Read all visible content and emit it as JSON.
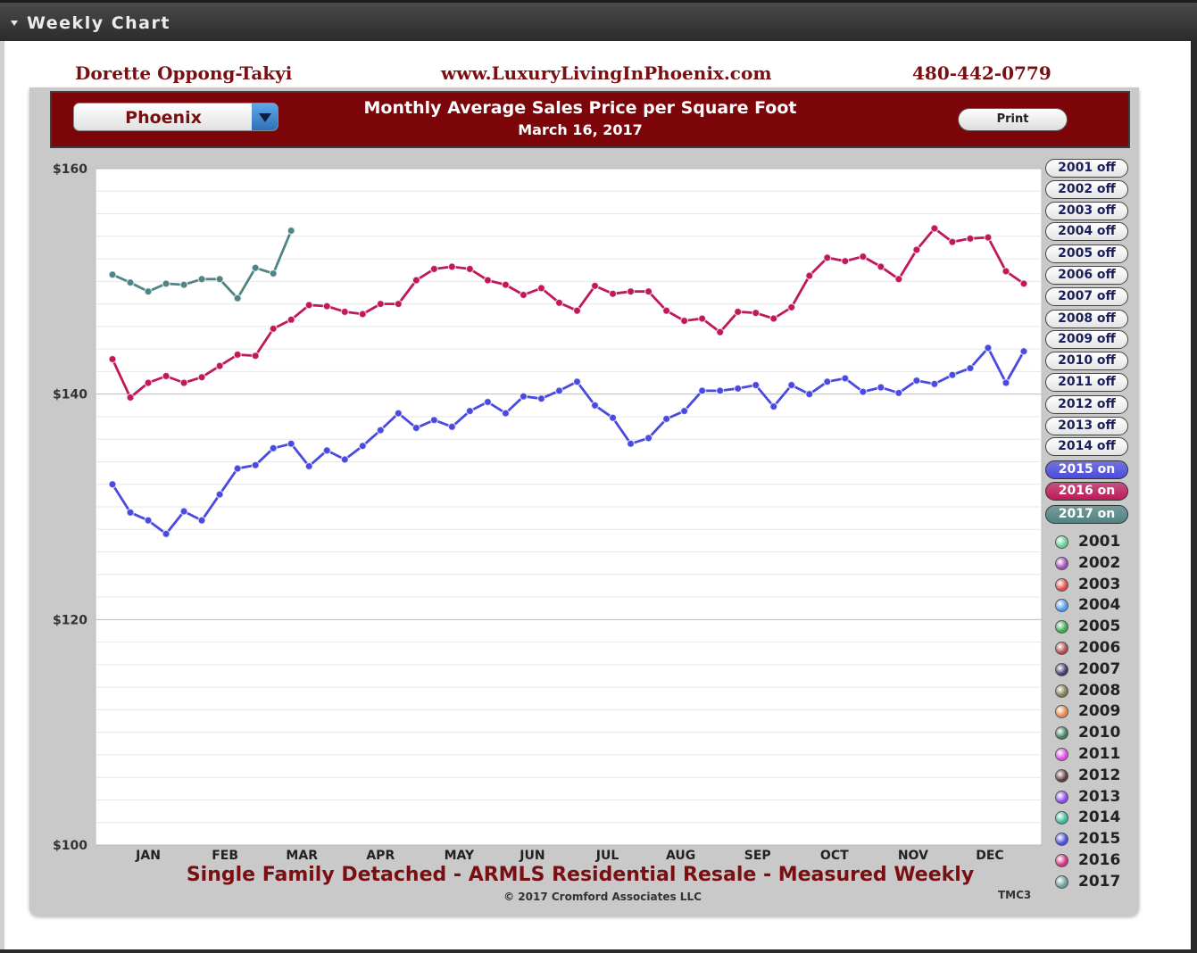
{
  "window": {
    "title": "Weekly Chart"
  },
  "header": {
    "agent_name": "Dorette Oppong-Takyi",
    "website": "www.LuxuryLivingInPhoenix.com",
    "phone": "480-442-0779"
  },
  "controls": {
    "location_selected": "Phoenix",
    "print_label": "Print"
  },
  "year_toggles": [
    {
      "label": "2001 off",
      "state": "off"
    },
    {
      "label": "2002 off",
      "state": "off"
    },
    {
      "label": "2003 off",
      "state": "off"
    },
    {
      "label": "2004 off",
      "state": "off"
    },
    {
      "label": "2005 off",
      "state": "off"
    },
    {
      "label": "2006 off",
      "state": "off"
    },
    {
      "label": "2007 off",
      "state": "off"
    },
    {
      "label": "2008 off",
      "state": "off"
    },
    {
      "label": "2009 off",
      "state": "off"
    },
    {
      "label": "2010 off",
      "state": "off"
    },
    {
      "label": "2011 off",
      "state": "off"
    },
    {
      "label": "2012 off",
      "state": "off"
    },
    {
      "label": "2013 off",
      "state": "off"
    },
    {
      "label": "2014 off",
      "state": "off"
    },
    {
      "label": "2015 on",
      "state": "on",
      "color": "#4a4ae0"
    },
    {
      "label": "2016 on",
      "state": "on",
      "color": "#c0185a"
    },
    {
      "label": "2017 on",
      "state": "on",
      "color": "#4f8484"
    }
  ],
  "legend": [
    {
      "year": "2001",
      "color": "#5fcf8f"
    },
    {
      "year": "2002",
      "color": "#a048b8"
    },
    {
      "year": "2003",
      "color": "#e0484a"
    },
    {
      "year": "2004",
      "color": "#4a9ae8"
    },
    {
      "year": "2005",
      "color": "#3aa84a"
    },
    {
      "year": "2006",
      "color": "#b04848"
    },
    {
      "year": "2007",
      "color": "#3a3a6a"
    },
    {
      "year": "2008",
      "color": "#7a7a4a"
    },
    {
      "year": "2009",
      "color": "#e0884a"
    },
    {
      "year": "2010",
      "color": "#3a7a5a"
    },
    {
      "year": "2011",
      "color": "#e048e0"
    },
    {
      "year": "2012",
      "color": "#5a3a3a"
    },
    {
      "year": "2013",
      "color": "#8a48e8"
    },
    {
      "year": "2014",
      "color": "#3ab89a"
    },
    {
      "year": "2015",
      "color": "#4a4ae0"
    },
    {
      "year": "2016",
      "color": "#d0307a"
    },
    {
      "year": "2017",
      "color": "#6a9a9a"
    }
  ],
  "footer": {
    "subtitle": "Single Family Detached - ARMLS Residential Resale - Measured Weekly",
    "copyright": "© 2017 Cromford Associates LLC",
    "code": "TMC3"
  },
  "chart_data": {
    "type": "line",
    "title": "Monthly Average Sales Price per Square Foot",
    "subtitle": "March 16, 2017",
    "ylim": [
      100,
      160
    ],
    "y_ticks": [
      {
        "value": 100,
        "label": "$100"
      },
      {
        "value": 120,
        "label": "$120"
      },
      {
        "value": 140,
        "label": "$140"
      },
      {
        "value": 160,
        "label": "$160"
      }
    ],
    "x_range": [
      1,
      52
    ],
    "x_unit": "week",
    "x_ticks": [
      {
        "week": 3,
        "label": "JAN"
      },
      {
        "week": 7.3,
        "label": "FEB"
      },
      {
        "week": 11.6,
        "label": "MAR"
      },
      {
        "week": 16,
        "label": "APR"
      },
      {
        "week": 20.4,
        "label": "MAY"
      },
      {
        "week": 24.5,
        "label": "JUN"
      },
      {
        "week": 28.7,
        "label": "JUL"
      },
      {
        "week": 32.8,
        "label": "AUG"
      },
      {
        "week": 37.1,
        "label": "SEP"
      },
      {
        "week": 41.4,
        "label": "OCT"
      },
      {
        "week": 45.8,
        "label": "NOV"
      },
      {
        "week": 50.1,
        "label": "DEC"
      }
    ],
    "grid": true,
    "series": [
      {
        "name": "2015",
        "color": "#4a4ae0",
        "values": [
          132.0,
          129.5,
          128.8,
          127.6,
          129.6,
          128.8,
          131.1,
          133.4,
          133.7,
          135.2,
          135.6,
          133.6,
          135.0,
          134.2,
          135.4,
          136.8,
          138.3,
          137.0,
          137.7,
          137.1,
          138.5,
          139.3,
          138.3,
          139.8,
          139.6,
          140.3,
          141.1,
          139.0,
          137.9,
          135.6,
          136.1,
          137.8,
          138.5,
          140.3,
          140.3,
          140.5,
          140.8,
          138.9,
          140.8,
          140.0,
          141.1,
          141.4,
          140.2,
          140.6,
          140.1,
          141.2,
          140.9,
          141.7,
          142.3,
          144.1,
          141.0,
          143.8
        ]
      },
      {
        "name": "2016",
        "color": "#c0185a",
        "values": [
          143.1,
          139.7,
          141.0,
          141.6,
          141.0,
          141.5,
          142.5,
          143.5,
          143.4,
          145.8,
          146.6,
          147.9,
          147.8,
          147.3,
          147.1,
          148.0,
          148.0,
          150.1,
          151.1,
          151.3,
          151.1,
          150.1,
          149.7,
          148.8,
          149.4,
          148.1,
          147.4,
          149.6,
          148.9,
          149.1,
          149.1,
          147.4,
          146.5,
          146.7,
          145.5,
          147.3,
          147.2,
          146.7,
          147.7,
          150.5,
          152.1,
          151.8,
          152.2,
          151.3,
          150.2,
          152.8,
          154.7,
          153.5,
          153.8,
          153.9,
          150.9,
          149.8
        ]
      },
      {
        "name": "2017",
        "color": "#4f8484",
        "values": [
          150.6,
          149.9,
          149.1,
          149.8,
          149.7,
          150.2,
          150.2,
          148.5,
          151.2,
          150.7,
          154.5
        ]
      }
    ]
  }
}
